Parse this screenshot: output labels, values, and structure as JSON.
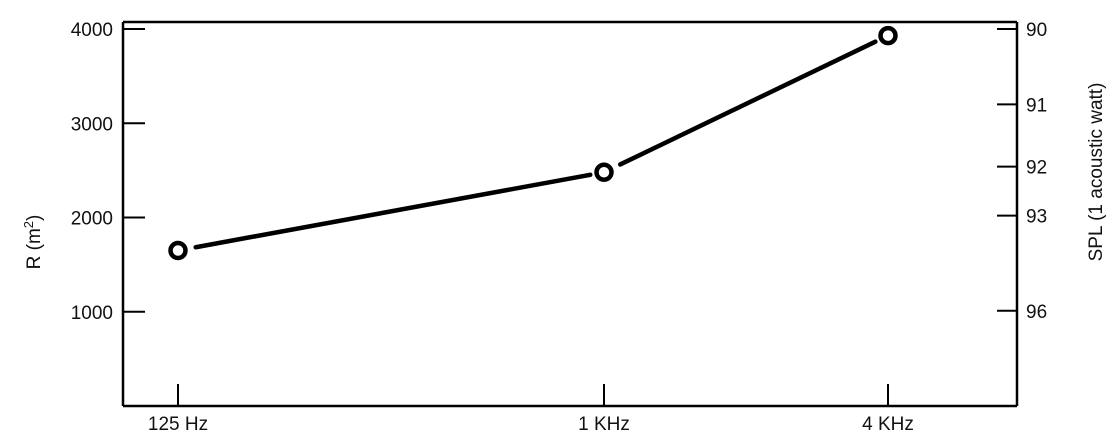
{
  "chart_data": {
    "type": "line",
    "categories": [
      "125 Hz",
      "1 KHz",
      "4 KHz"
    ],
    "x_positions": [
      125,
      1000,
      4000
    ],
    "values": [
      1650,
      2480,
      3930
    ],
    "ylabel_left": "R (m",
    "ylabel_left_sup": "2",
    "ylabel_left_close": ")",
    "ylim_left": [
      0,
      4000
    ],
    "yticks_left": [
      1000,
      2000,
      3000,
      4000
    ],
    "ylabel_right": "SPL (1 acoustic watt)",
    "yticks_right": [
      {
        "label": "90",
        "r": 4000
      },
      {
        "label": "91",
        "r": 3200
      },
      {
        "label": "92",
        "r": 2540
      },
      {
        "label": "93",
        "r": 2020
      },
      {
        "label": "96",
        "r": 1010
      }
    ],
    "grid": false,
    "legend": "none",
    "colors": {
      "line": "#000000",
      "marker_fill": "#ffffff"
    }
  }
}
